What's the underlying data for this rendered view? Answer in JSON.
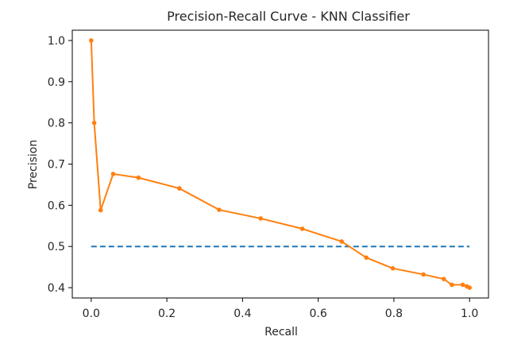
{
  "chart_data": {
    "type": "line",
    "title": "Precision-Recall Curve - KNN Classifier",
    "xlabel": "Recall",
    "ylabel": "Precision",
    "xlim": [
      -0.05,
      1.05
    ],
    "ylim": [
      0.375,
      1.025
    ],
    "xticks": [
      0.0,
      0.2,
      0.4,
      0.6,
      0.8,
      1.0
    ],
    "xtick_labels": [
      "0.0",
      "0.2",
      "0.4",
      "0.6",
      "0.8",
      "1.0"
    ],
    "yticks": [
      0.4,
      0.5,
      0.6,
      0.7,
      0.8,
      0.9,
      1.0
    ],
    "ytick_labels": [
      "0.4",
      "0.5",
      "0.6",
      "0.7",
      "0.8",
      "0.9",
      "1.0"
    ],
    "grid": false,
    "legend": "none",
    "series": [
      {
        "style": "dashed",
        "color": "#1f77b4",
        "markers": false,
        "x": [
          0.0,
          1.0
        ],
        "y": [
          0.5,
          0.5
        ]
      },
      {
        "style": "solid",
        "color": "#ff7f0e",
        "markers": true,
        "x": [
          0.0,
          0.008,
          0.025,
          0.058,
          0.125,
          0.233,
          0.338,
          0.448,
          0.558,
          0.662,
          0.727,
          0.797,
          0.878,
          0.932,
          0.953,
          0.982,
          0.993,
          1.0
        ],
        "y": [
          1.0,
          0.8,
          0.588,
          0.676,
          0.667,
          0.641,
          0.589,
          0.568,
          0.543,
          0.512,
          0.473,
          0.447,
          0.432,
          0.421,
          0.407,
          0.407,
          0.403,
          0.4
        ]
      }
    ]
  }
}
